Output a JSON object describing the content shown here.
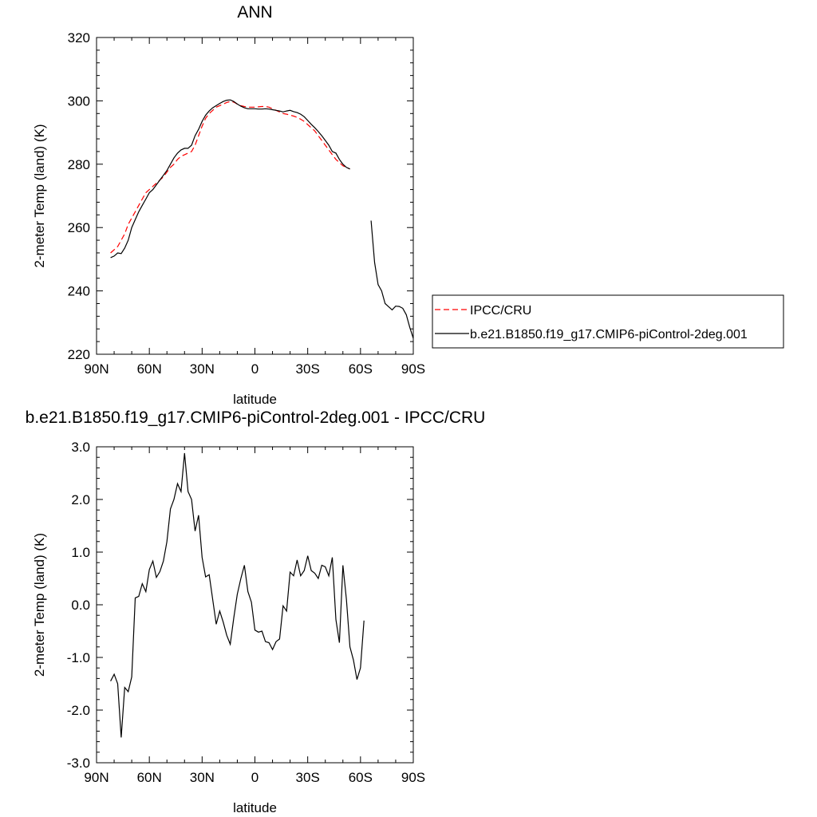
{
  "chart_data": [
    {
      "type": "line",
      "title": "ANN",
      "xlabel": "latitude",
      "ylabel": "2-meter Temp (land) (K)",
      "xlim": [
        90,
        -90
      ],
      "ylim": [
        220,
        320
      ],
      "xticks": [
        90,
        60,
        30,
        0,
        -30,
        -60,
        -90
      ],
      "xtick_labels": [
        "90N",
        "60N",
        "30N",
        "0",
        "30S",
        "60S",
        "90S"
      ],
      "yticks": [
        220,
        240,
        260,
        280,
        300,
        320
      ],
      "ytick_labels": [
        "220",
        "240",
        "260",
        "280",
        "300",
        "320"
      ],
      "grid": false,
      "legend_position": "right",
      "series": [
        {
          "name": "IPCC/CRU",
          "color": "#ff0000",
          "dash": "dashed",
          "segments": [
            [
              [
                82,
                252
              ],
              [
                80,
                253
              ],
              [
                78,
                254
              ],
              [
                76,
                256
              ],
              [
                74,
                258
              ],
              [
                72,
                261
              ],
              [
                70,
                263
              ],
              [
                68,
                265
              ],
              [
                66,
                267
              ],
              [
                64,
                269
              ],
              [
                62,
                271
              ],
              [
                60,
                272
              ],
              [
                58,
                273
              ],
              [
                56,
                274
              ],
              [
                54,
                275
              ],
              [
                52,
                276
              ],
              [
                50,
                277.5
              ],
              [
                48,
                279
              ],
              [
                46,
                280
              ],
              [
                44,
                281.5
              ],
              [
                42,
                282.5
              ],
              [
                40,
                283
              ],
              [
                38,
                283.5
              ],
              [
                36,
                284
              ],
              [
                34,
                286
              ],
              [
                32,
                289
              ],
              [
                30,
                292
              ],
              [
                28,
                294.5
              ],
              [
                26,
                296
              ],
              [
                24,
                297
              ],
              [
                22,
                298
              ],
              [
                20,
                298.5
              ],
              [
                18,
                299
              ],
              [
                16,
                299.5
              ],
              [
                14,
                299.8
              ],
              [
                12,
                299.6
              ],
              [
                10,
                299
              ],
              [
                8,
                298.5
              ],
              [
                6,
                298.2
              ],
              [
                4,
                298
              ],
              [
                2,
                298
              ],
              [
                0,
                298
              ],
              [
                -2,
                298.1
              ],
              [
                -4,
                298.2
              ],
              [
                -6,
                298.2
              ],
              [
                -8,
                298
              ],
              [
                -10,
                297.5
              ],
              [
                -12,
                297
              ],
              [
                -14,
                296.5
              ],
              [
                -16,
                296
              ],
              [
                -18,
                295.8
              ],
              [
                -20,
                295.5
              ],
              [
                -22,
                295.2
              ],
              [
                -24,
                294.8
              ],
              [
                -26,
                294.2
              ],
              [
                -28,
                293.5
              ],
              [
                -30,
                292.5
              ],
              [
                -32,
                291.5
              ],
              [
                -34,
                290.5
              ],
              [
                -36,
                289
              ],
              [
                -38,
                287.5
              ],
              [
                -40,
                286
              ],
              [
                -42,
                284.5
              ],
              [
                -44,
                283
              ],
              [
                -46,
                281.5
              ],
              [
                -48,
                280.5
              ],
              [
                -50,
                279.5
              ],
              [
                -52,
                279
              ],
              [
                -54,
                278.5
              ]
            ]
          ]
        },
        {
          "name": "b.e21.B1850.f19_g17.CMIP6-piControl-2deg.001",
          "color": "#000000",
          "dash": "solid",
          "segments": [
            [
              [
                82,
                250.5
              ],
              [
                80,
                251
              ],
              [
                78,
                252
              ],
              [
                76,
                251.8
              ],
              [
                74,
                253.5
              ],
              [
                72,
                256
              ],
              [
                70,
                260
              ],
              [
                68,
                262.5
              ],
              [
                66,
                265
              ],
              [
                64,
                267
              ],
              [
                62,
                269
              ],
              [
                60,
                271
              ],
              [
                58,
                272
              ],
              [
                56,
                273.5
              ],
              [
                54,
                275
              ],
              [
                52,
                276.5
              ],
              [
                50,
                278
              ],
              [
                48,
                280
              ],
              [
                46,
                282
              ],
              [
                44,
                283.5
              ],
              [
                42,
                284.5
              ],
              [
                40,
                285
              ],
              [
                38,
                285
              ],
              [
                36,
                286
              ],
              [
                34,
                289
              ],
              [
                32,
                291
              ],
              [
                30,
                293.5
              ],
              [
                28,
                295.5
              ],
              [
                26,
                296.8
              ],
              [
                24,
                297.8
              ],
              [
                22,
                298.5
              ],
              [
                20,
                299.2
              ],
              [
                18,
                299.8
              ],
              [
                16,
                300.2
              ],
              [
                14,
                300.3
              ],
              [
                12,
                299.8
              ],
              [
                10,
                299
              ],
              [
                8,
                298.3
              ],
              [
                6,
                297.8
              ],
              [
                4,
                297.5
              ],
              [
                2,
                297.5
              ],
              [
                0,
                297.5
              ],
              [
                -2,
                297.4
              ],
              [
                -4,
                297.4
              ],
              [
                -6,
                297.5
              ],
              [
                -8,
                297.4
              ],
              [
                -10,
                297.2
              ],
              [
                -12,
                297
              ],
              [
                -14,
                296.8
              ],
              [
                -16,
                296.5
              ],
              [
                -18,
                296.8
              ],
              [
                -20,
                297
              ],
              [
                -22,
                296.6
              ],
              [
                -24,
                296.3
              ],
              [
                -26,
                295.8
              ],
              [
                -28,
                295
              ],
              [
                -30,
                293.8
              ],
              [
                -32,
                292.6
              ],
              [
                -34,
                291.5
              ],
              [
                -36,
                290.3
              ],
              [
                -38,
                289
              ],
              [
                -40,
                287.5
              ],
              [
                -42,
                286
              ],
              [
                -44,
                284
              ],
              [
                -46,
                283.5
              ],
              [
                -48,
                281.5
              ],
              [
                -50,
                280
              ],
              [
                -52,
                279
              ],
              [
                -54,
                278.5
              ]
            ],
            [
              [
                -66,
                262.2
              ],
              [
                -68,
                249
              ],
              [
                -70,
                242
              ],
              [
                -72,
                240
              ],
              [
                -74,
                236
              ],
              [
                -76,
                235
              ],
              [
                -78,
                234
              ],
              [
                -80,
                235.2
              ],
              [
                -82,
                235.1
              ],
              [
                -84,
                234.5
              ],
              [
                -86,
                232.5
              ],
              [
                -88,
                228.5
              ],
              [
                -90,
                225
              ]
            ]
          ]
        }
      ]
    },
    {
      "type": "line",
      "title": "b.e21.B1850.f19_g17.CMIP6-piControl-2deg.001 - IPCC/CRU",
      "xlabel": "latitude",
      "ylabel": "2-meter Temp (land) (K)",
      "xlim": [
        90,
        -90
      ],
      "ylim": [
        -3,
        3
      ],
      "xticks": [
        90,
        60,
        30,
        0,
        -30,
        -60,
        -90
      ],
      "xtick_labels": [
        "90N",
        "60N",
        "30N",
        "0",
        "30S",
        "60S",
        "90S"
      ],
      "yticks": [
        -3,
        -2,
        -1,
        0,
        1,
        2,
        3
      ],
      "ytick_labels": [
        "-3.0",
        "-2.0",
        "-1.0",
        "0.0",
        "1.0",
        "2.0",
        "3.0"
      ],
      "grid": false,
      "series": [
        {
          "color": "#000000",
          "dash": "solid",
          "segments": [
            [
              [
                82,
                -1.45
              ],
              [
                80,
                -1.32
              ],
              [
                78,
                -1.5
              ],
              [
                76,
                -2.52
              ],
              [
                74,
                -1.57
              ],
              [
                72,
                -1.65
              ],
              [
                70,
                -1.37
              ],
              [
                68,
                0.13
              ],
              [
                66,
                0.16
              ],
              [
                64,
                0.4
              ],
              [
                62,
                0.25
              ],
              [
                60,
                0.67
              ],
              [
                58,
                0.83
              ],
              [
                56,
                0.52
              ],
              [
                54,
                0.63
              ],
              [
                52,
                0.83
              ],
              [
                50,
                1.2
              ],
              [
                48,
                1.82
              ],
              [
                46,
                2.0
              ],
              [
                44,
                2.3
              ],
              [
                42,
                2.15
              ],
              [
                40,
                2.88
              ],
              [
                38,
                2.15
              ],
              [
                36,
                2.0
              ],
              [
                34,
                1.4
              ],
              [
                32,
                1.7
              ],
              [
                30,
                0.9
              ],
              [
                28,
                0.53
              ],
              [
                26,
                0.57
              ],
              [
                24,
                0.1
              ],
              [
                22,
                -0.37
              ],
              [
                20,
                -0.12
              ],
              [
                18,
                -0.33
              ],
              [
                16,
                -0.58
              ],
              [
                14,
                -0.75
              ],
              [
                12,
                -0.25
              ],
              [
                10,
                0.2
              ],
              [
                8,
                0.5
              ],
              [
                6,
                0.75
              ],
              [
                4,
                0.25
              ],
              [
                2,
                0.05
              ],
              [
                0,
                -0.48
              ],
              [
                -2,
                -0.52
              ],
              [
                -4,
                -0.5
              ],
              [
                -6,
                -0.7
              ],
              [
                -8,
                -0.72
              ],
              [
                -10,
                -0.85
              ],
              [
                -12,
                -0.7
              ],
              [
                -14,
                -0.65
              ],
              [
                -16,
                -0.02
              ],
              [
                -18,
                -0.12
              ],
              [
                -20,
                0.62
              ],
              [
                -22,
                0.55
              ],
              [
                -24,
                0.85
              ],
              [
                -26,
                0.55
              ],
              [
                -28,
                0.65
              ],
              [
                -30,
                0.93
              ],
              [
                -32,
                0.65
              ],
              [
                -34,
                0.6
              ],
              [
                -36,
                0.5
              ],
              [
                -38,
                0.75
              ],
              [
                -40,
                0.72
              ],
              [
                -42,
                0.55
              ],
              [
                -44,
                0.9
              ],
              [
                -46,
                -0.28
              ],
              [
                -48,
                -0.72
              ],
              [
                -50,
                0.75
              ],
              [
                -52,
                0.1
              ],
              [
                -54,
                -0.8
              ],
              [
                -56,
                -1.05
              ],
              [
                -58,
                -1.42
              ],
              [
                -60,
                -1.2
              ],
              [
                -62,
                -0.3
              ]
            ]
          ]
        }
      ]
    }
  ]
}
